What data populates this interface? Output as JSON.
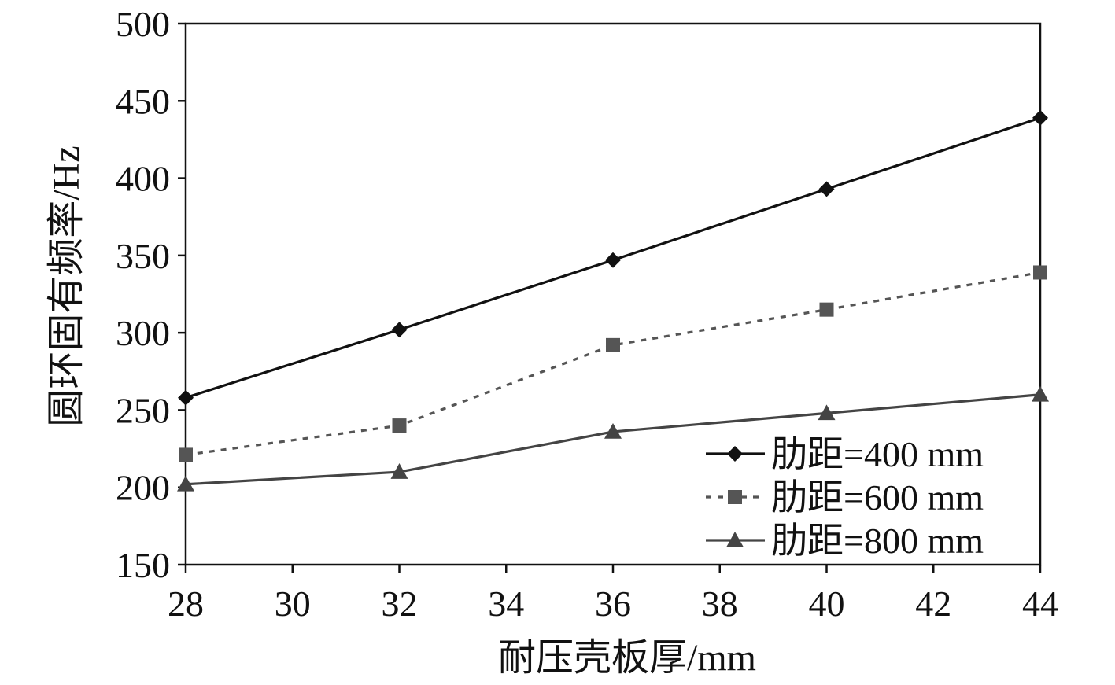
{
  "chart_data": {
    "type": "line",
    "title": "",
    "xlabel": "耐压壳板厚/mm",
    "ylabel": "圆环固有频率/Hz",
    "xlim": [
      28,
      44
    ],
    "ylim": [
      150,
      500
    ],
    "x_ticks": [
      28,
      30,
      32,
      34,
      36,
      38,
      40,
      42,
      44
    ],
    "y_ticks": [
      150,
      200,
      250,
      300,
      350,
      400,
      450,
      500
    ],
    "grid": false,
    "legend_position": "bottom-right",
    "x": [
      28,
      32,
      36,
      40,
      44
    ],
    "series": [
      {
        "name": "肋距=400 mm",
        "values": [
          258,
          302,
          347,
          393,
          439
        ],
        "color": "#111111",
        "line_style": "solid",
        "marker": "diamond"
      },
      {
        "name": "肋距=600 mm",
        "values": [
          221,
          240,
          292,
          315,
          339
        ],
        "color": "#555555",
        "line_style": "dotted",
        "marker": "square"
      },
      {
        "name": "肋距=800 mm",
        "values": [
          202,
          210,
          236,
          248,
          260
        ],
        "color": "#444444",
        "line_style": "solid",
        "marker": "triangle"
      }
    ]
  }
}
